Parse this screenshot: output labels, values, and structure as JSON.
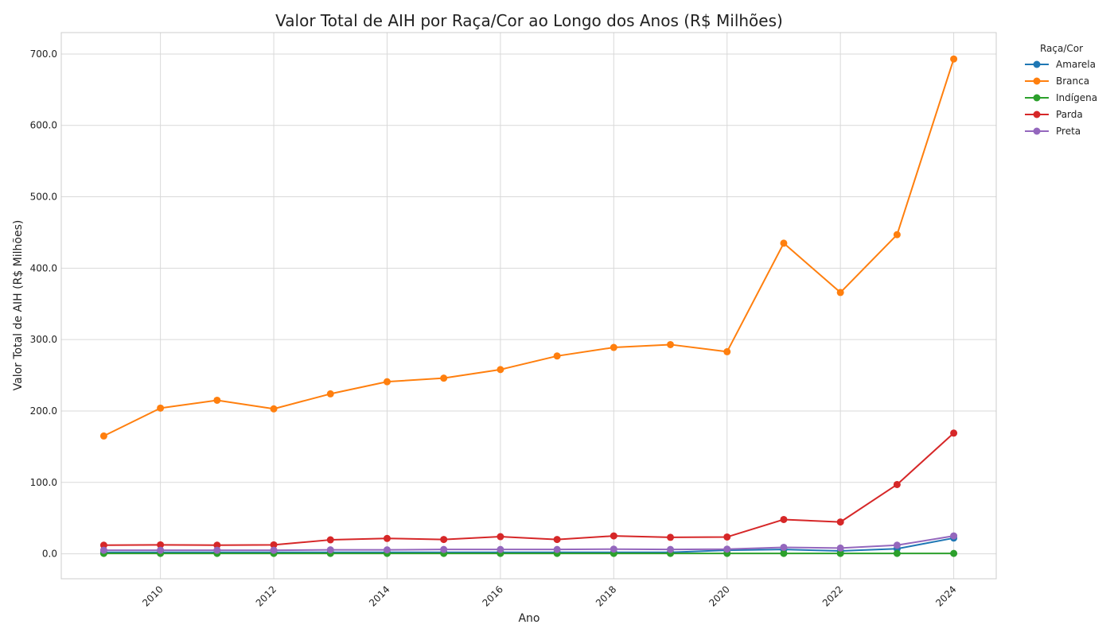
{
  "chart_data": {
    "type": "line",
    "title": "Valor Total de AIH por Raça/Cor ao Longo dos Anos (R$ Milhões)",
    "xlabel": "Ano",
    "ylabel": "Valor Total de AIH (R$ Milhões)",
    "x": [
      2009,
      2010,
      2011,
      2012,
      2013,
      2014,
      2015,
      2016,
      2017,
      2018,
      2019,
      2020,
      2021,
      2022,
      2023,
      2024
    ],
    "xlim": [
      2008.25,
      2024.75
    ],
    "ylim": [
      -35,
      730
    ],
    "x_ticks": [
      2010,
      2012,
      2014,
      2016,
      2018,
      2020,
      2022,
      2024
    ],
    "x_tick_labels": [
      "2010",
      "2012",
      "2014",
      "2016",
      "2018",
      "2020",
      "2022",
      "2024"
    ],
    "y_ticks": [
      0,
      100,
      200,
      300,
      400,
      500,
      600,
      700
    ],
    "y_tick_labels": [
      "0.0",
      "100.0",
      "200.0",
      "300.0",
      "400.0",
      "500.0",
      "600.0",
      "700.0"
    ],
    "grid": true,
    "legend": {
      "title": "Raça/Cor",
      "placement": "outside-top-right"
    },
    "series": [
      {
        "name": "Amarela",
        "color": "#1f77b4",
        "values": [
          2,
          2,
          2,
          2,
          2,
          2,
          2,
          2,
          2,
          2,
          2,
          5,
          6,
          4,
          7,
          22
        ]
      },
      {
        "name": "Branca",
        "color": "#ff7f0e",
        "values": [
          165,
          204,
          215,
          203,
          224,
          241,
          246,
          258,
          277,
          289,
          293,
          283,
          435,
          366,
          447,
          693
        ]
      },
      {
        "name": "Indígena",
        "color": "#2ca02c",
        "values": [
          0.5,
          0.5,
          0.5,
          0.5,
          0.5,
          0.5,
          0.5,
          0.5,
          0.5,
          0.5,
          0.5,
          0.5,
          0.5,
          0.5,
          0.5,
          0.5
        ]
      },
      {
        "name": "Parda",
        "color": "#d62728",
        "values": [
          12,
          12.5,
          12,
          12.5,
          19.5,
          21.5,
          20,
          24,
          20,
          25,
          23,
          23.5,
          48,
          44.5,
          97,
          169
        ]
      },
      {
        "name": "Preta",
        "color": "#9467bd",
        "values": [
          5,
          5,
          5,
          5,
          5.5,
          5.5,
          6,
          6,
          6,
          6.5,
          6,
          6.5,
          9,
          8,
          12,
          25
        ]
      }
    ]
  }
}
